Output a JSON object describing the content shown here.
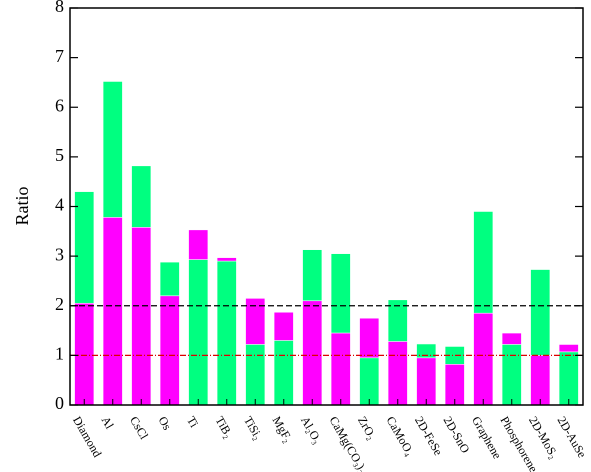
{
  "chart_data": {
    "type": "overlap-bar",
    "ylabel": "Ratio",
    "categories": [
      "Diamond",
      "Al",
      "CsCl",
      "Os",
      "Ti",
      "TiB₂",
      "TiSi₂",
      "MgF₂",
      "Al₂O₃",
      "CaMg(CO₃)₂",
      "ZrO₂",
      "CaMoO₄",
      "2D-FeSe",
      "2D-SnO",
      "Graphene",
      "Phosphorene",
      "2D-MoS₂",
      "2D-AuSe"
    ],
    "series": [
      {
        "color": "#ff00ff",
        "values": [
          2.05,
          3.78,
          3.58,
          2.2,
          3.53,
          2.97,
          2.15,
          1.87,
          2.1,
          1.45,
          1.75,
          1.28,
          0.95,
          0.82,
          1.85,
          1.45,
          1.0,
          1.22
        ]
      },
      {
        "color": "#00ff80",
        "values": [
          4.3,
          6.52,
          4.82,
          2.88,
          2.93,
          2.9,
          1.22,
          1.3,
          3.13,
          3.05,
          0.95,
          2.12,
          1.23,
          1.18,
          3.9,
          1.22,
          2.73,
          1.07
        ]
      }
    ],
    "ylim": [
      0,
      8
    ],
    "yticks": [
      0,
      1,
      2,
      3,
      4,
      5,
      6,
      7,
      8
    ],
    "reference_lines": [
      {
        "value": 2,
        "color": "#000000",
        "dash": "6 3"
      },
      {
        "value": 1,
        "color": "#dd0000",
        "dash": "6 2 1 2"
      }
    ]
  }
}
